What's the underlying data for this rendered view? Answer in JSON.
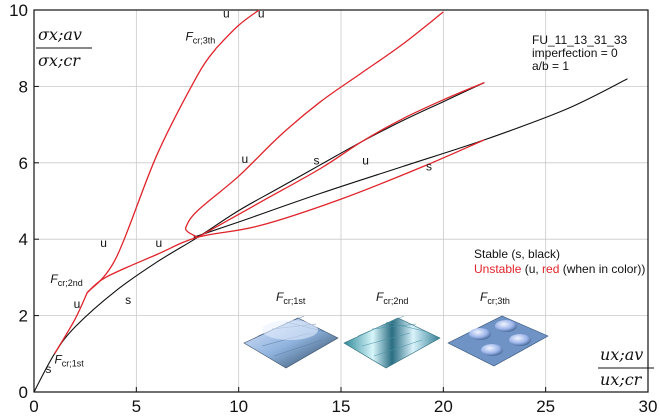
{
  "chart_data": {
    "type": "line",
    "xlim": [
      0,
      30
    ],
    "ylim": [
      0,
      10
    ],
    "x_ticks": [
      "0",
      "5",
      "10",
      "15",
      "20",
      "25",
      "30"
    ],
    "y_ticks": [
      "0",
      "2",
      "4",
      "6",
      "8",
      "10"
    ],
    "grid": true,
    "xlabel_num": "ux;av",
    "xlabel_den": "ux;cr",
    "ylabel_num": "σx;av",
    "ylabel_den": "σx;cr",
    "info_lines": [
      "FU_11_13_31_33",
      "imperfection = 0",
      "a/b = 1"
    ],
    "legend_stable": "Stable (s, black)",
    "legend_unstable_parts": [
      "Unstable",
      " (u, ",
      "red",
      " (when in color))"
    ],
    "colors": {
      "stable": "#111111",
      "unstable": "#e0242b"
    },
    "series": [
      {
        "kind": "stable",
        "points": [
          [
            0,
            0
          ],
          [
            1,
            1
          ],
          [
            2,
            1.7
          ],
          [
            4,
            2.65
          ],
          [
            6,
            3.4
          ],
          [
            8,
            4.05
          ],
          [
            10,
            4.75
          ],
          [
            12,
            5.35
          ],
          [
            14,
            5.95
          ],
          [
            16,
            6.55
          ],
          [
            18,
            7.1
          ],
          [
            20,
            7.6
          ],
          [
            22,
            8.1
          ]
        ]
      },
      {
        "kind": "stable",
        "points": [
          [
            7.8,
            4.05
          ],
          [
            10,
            4.45
          ],
          [
            14,
            5.2
          ],
          [
            18,
            5.9
          ],
          [
            22,
            6.6
          ],
          [
            26,
            7.4
          ],
          [
            29,
            8.2
          ]
        ]
      },
      {
        "kind": "unstable",
        "points": [
          [
            1,
            1
          ],
          [
            2,
            1.9
          ],
          [
            2.6,
            2.6
          ]
        ]
      },
      {
        "kind": "unstable",
        "points": [
          [
            2.6,
            2.6
          ],
          [
            4,
            3.5
          ],
          [
            6,
            6.2
          ],
          [
            8,
            8.3
          ],
          [
            8.9,
            9
          ]
        ]
      },
      {
        "kind": "unstable",
        "points": [
          [
            8.9,
            9
          ],
          [
            10,
            9.6
          ],
          [
            11,
            10
          ]
        ]
      },
      {
        "kind": "unstable",
        "points": [
          [
            2.6,
            2.6
          ],
          [
            3.5,
            3
          ],
          [
            6,
            3.6
          ],
          [
            8,
            4.05
          ],
          [
            11,
            4.35
          ],
          [
            15,
            5.05
          ],
          [
            19,
            5.9
          ],
          [
            22,
            6.6
          ]
        ]
      },
      {
        "kind": "unstable",
        "points": [
          [
            8,
            4.05
          ],
          [
            7.5,
            4.2
          ],
          [
            7.45,
            4.35
          ],
          [
            8,
            4.75
          ],
          [
            10,
            5.65
          ],
          [
            12,
            6.7
          ],
          [
            14,
            7.6
          ],
          [
            16,
            8.35
          ],
          [
            18,
            9.1
          ],
          [
            20,
            9.95
          ]
        ]
      },
      {
        "kind": "unstable",
        "points": [
          [
            8,
            4.05
          ],
          [
            11,
            4.95
          ],
          [
            14,
            5.85
          ],
          [
            16,
            6.55
          ],
          [
            18,
            7.15
          ],
          [
            20,
            7.65
          ],
          [
            22,
            8.1
          ]
        ]
      }
    ],
    "labels": [
      {
        "text": "s",
        "x": 0.7,
        "y": 0.5
      },
      {
        "text": "s",
        "x": 4.6,
        "y": 2.3
      },
      {
        "text": "s",
        "x": 13.8,
        "y": 5.95
      },
      {
        "text": "s",
        "x": 19.3,
        "y": 5.8
      },
      {
        "text": "u",
        "x": 2.1,
        "y": 2.2
      },
      {
        "text": "u",
        "x": 3.4,
        "y": 3.8
      },
      {
        "text": "u",
        "x": 6.1,
        "y": 3.8
      },
      {
        "text": "u",
        "x": 10.3,
        "y": 6.0
      },
      {
        "text": "u",
        "x": 16.2,
        "y": 5.95
      },
      {
        "text": "u",
        "x": 9.4,
        "y": 9.8
      },
      {
        "text": "u",
        "x": 11.1,
        "y": 9.8
      }
    ],
    "fcr_labels": [
      {
        "base": "F",
        "sub": "cr;1st",
        "x": 1.0,
        "y": 0.75
      },
      {
        "base": "F",
        "sub": "cr;2nd",
        "x": 0.8,
        "y": 2.85
      },
      {
        "base": "F",
        "sub": "cr;3th",
        "x": 7.4,
        "y": 9.2
      }
    ],
    "insets": [
      {
        "base": "F",
        "sub": "cr;1st"
      },
      {
        "base": "F",
        "sub": "cr;2nd"
      },
      {
        "base": "F",
        "sub": "cr;3th"
      }
    ]
  }
}
